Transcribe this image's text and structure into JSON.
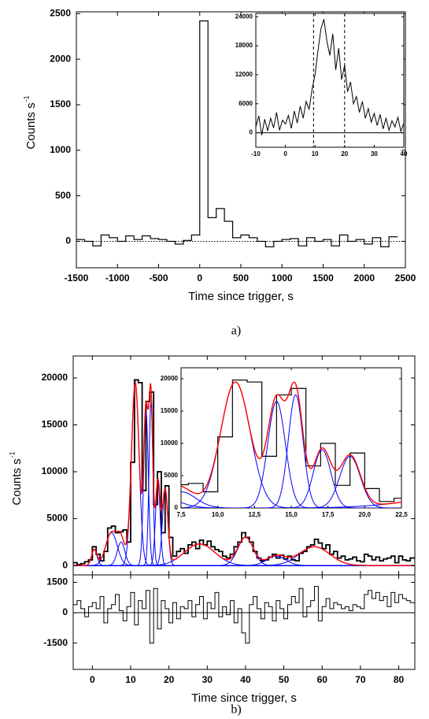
{
  "chart_data": [
    {
      "type": "histogram",
      "caption": "a)",
      "xlabel": "Time since trigger, s",
      "ylabel": "Counts s",
      "ylabel_sup": "-1",
      "bins": [
        -1500,
        -1400,
        -1300,
        -1200,
        -1100,
        -1000,
        -900,
        -800,
        -700,
        -600,
        -500,
        -400,
        -300,
        -200,
        -100,
        0,
        100,
        200,
        300,
        400,
        500,
        600,
        700,
        800,
        900,
        1000,
        1100,
        1200,
        1300,
        1400,
        1500,
        1600,
        1700,
        1800,
        1900,
        2000,
        2100,
        2200,
        2300,
        2400
      ],
      "values": [
        20,
        0,
        -50,
        70,
        40,
        0,
        60,
        20,
        60,
        30,
        20,
        0,
        -30,
        10,
        70,
        2420,
        260,
        360,
        220,
        40,
        70,
        40,
        0,
        -60,
        0,
        20,
        30,
        -50,
        40,
        0,
        20,
        -50,
        70,
        0,
        20,
        -30,
        40,
        -60,
        50
      ],
      "color": "#000000",
      "zero_line": "dotted",
      "xlim": [
        -1500,
        2500
      ],
      "xticks": [
        -1500,
        -1000,
        -500,
        0,
        500,
        1000,
        1500,
        2000,
        2500
      ],
      "ylim": [
        -290,
        2520
      ],
      "yticks": [
        0,
        500,
        1000,
        1500,
        2000,
        2500
      ]
    },
    {
      "type": "line",
      "x": [
        -10,
        -9,
        -8,
        -7,
        -6,
        -5,
        -4,
        -3,
        -2,
        -1,
        0,
        1,
        2,
        3,
        4,
        5,
        6,
        7,
        8,
        9,
        10,
        11,
        12,
        13,
        14,
        15,
        16,
        17,
        18,
        19,
        20,
        21,
        22,
        23,
        24,
        25,
        26,
        27,
        28,
        29,
        30,
        31,
        32,
        33,
        34,
        35,
        36,
        37,
        38,
        39,
        40
      ],
      "values": [
        1200,
        3500,
        -500,
        2800,
        400,
        3000,
        1000,
        4200,
        500,
        2600,
        1800,
        3600,
        900,
        4500,
        2000,
        5500,
        3000,
        6500,
        4800,
        9000,
        12000,
        17000,
        21500,
        23500,
        19000,
        16000,
        20500,
        13000,
        17500,
        11000,
        14000,
        8500,
        10500,
        6000,
        7500,
        4200,
        6500,
        3000,
        5000,
        2200,
        4000,
        1500,
        3800,
        800,
        3000,
        500,
        2500,
        1200,
        3200,
        300,
        2000
      ],
      "color": "#000000",
      "zero_line": "solid",
      "vlines": [
        9.5,
        20
      ],
      "xlim": [
        -10,
        40
      ],
      "xticks": [
        -10,
        0,
        10,
        20,
        30,
        40
      ],
      "ylim": [
        -3000,
        24700
      ],
      "yticks": [
        0,
        6000,
        12000,
        18000,
        24000
      ]
    },
    {
      "type": "histogram",
      "ylabel": "Counts s",
      "ylabel_sup": "-1",
      "bins": [
        -5,
        -4,
        -3,
        -2,
        -1,
        0,
        1,
        2,
        3,
        4,
        5,
        6,
        7,
        8,
        9,
        10,
        11,
        12,
        13,
        14,
        15,
        16,
        17,
        18,
        19,
        20,
        21,
        22,
        23,
        24,
        25,
        26,
        27,
        28,
        29,
        30,
        31,
        32,
        33,
        34,
        35,
        36,
        37,
        38,
        39,
        40,
        41,
        42,
        43,
        44,
        45,
        46,
        47,
        48,
        49,
        50,
        51,
        52,
        53,
        54,
        55,
        56,
        57,
        58,
        59,
        60,
        61,
        62,
        63,
        64,
        65,
        66,
        67,
        68,
        69,
        70,
        71,
        72,
        73,
        74,
        75,
        76,
        77,
        78,
        79,
        80,
        81,
        82,
        83,
        84
      ],
      "values": [
        300,
        100,
        200,
        400,
        600,
        2000,
        1200,
        500,
        1500,
        4000,
        4200,
        3500,
        3600,
        3800,
        2500,
        11000,
        19800,
        19500,
        8000,
        17500,
        18500,
        6500,
        10000,
        3500,
        8500,
        3000,
        1000,
        1500,
        1800,
        1300,
        2200,
        2500,
        1800,
        2700,
        2200,
        2600,
        2000,
        1700,
        1500,
        1000,
        800,
        1200,
        2000,
        2500,
        3500,
        3000,
        2500,
        1500,
        800,
        500,
        600,
        900,
        1200,
        800,
        1100,
        700,
        1000,
        600,
        500,
        1300,
        1500,
        2000,
        2200,
        2800,
        2400,
        1800,
        2200,
        1200,
        1500,
        800,
        1000,
        600,
        700,
        900,
        500,
        400,
        1200,
        1000,
        600,
        900,
        500,
        700,
        800,
        1000,
        300,
        1000,
        600,
        500,
        800
      ],
      "color": "#000000",
      "zero_line": "solid",
      "fit_color": "#ff0000",
      "component_color": "#0000ff",
      "components": [
        {
          "center": 0.5,
          "amplitude": 1700,
          "sigma": 0.7
        },
        {
          "center": 5,
          "amplitude": 3500,
          "sigma": 1.5
        },
        {
          "center": 7.5,
          "amplitude": 2500,
          "sigma": 1.0
        },
        {
          "center": 11.2,
          "amplitude": 19500,
          "sigma": 1.0
        },
        {
          "center": 14,
          "amplitude": 16500,
          "sigma": 0.6
        },
        {
          "center": 15.3,
          "amplitude": 17500,
          "sigma": 0.5
        },
        {
          "center": 17.1,
          "amplitude": 9000,
          "sigma": 0.6
        },
        {
          "center": 19,
          "amplitude": 8000,
          "sigma": 0.7
        },
        {
          "center": 28,
          "amplitude": 2300,
          "sigma": 4
        },
        {
          "center": 40,
          "amplitude": 3000,
          "sigma": 2
        },
        {
          "center": 48,
          "amplitude": 1000,
          "sigma": 2.5
        },
        {
          "center": 58,
          "amplitude": 2000,
          "sigma": 4
        }
      ],
      "xlim": [
        -5,
        84.2
      ],
      "xticks": [
        0,
        10,
        20,
        30,
        40,
        50,
        60,
        70,
        80
      ],
      "ylim": [
        -1000,
        22350
      ],
      "yticks": [
        0,
        5000,
        10000,
        15000,
        20000
      ],
      "inset": {
        "xlim": [
          7.5,
          22.5
        ],
        "xticks": [
          {
            "value": 7.5,
            "label": "7,5"
          },
          {
            "value": 10,
            "label": "10,0"
          },
          {
            "value": 12.5,
            "label": "12,5"
          },
          {
            "value": 15,
            "label": "15,0"
          },
          {
            "value": 17.5,
            "label": "17,5"
          },
          {
            "value": 20,
            "label": "20,0"
          },
          {
            "value": 22.5,
            "label": "22,5"
          }
        ],
        "ylim": [
          0,
          21700
        ],
        "yticks": [
          0,
          5000,
          10000,
          15000,
          20000
        ]
      }
    },
    {
      "type": "histogram",
      "caption": "b)",
      "xlabel": "Time since trigger, s",
      "bins": [
        -5,
        -4,
        -3,
        -2,
        -1,
        0,
        1,
        2,
        3,
        4,
        5,
        6,
        7,
        8,
        9,
        10,
        11,
        12,
        13,
        14,
        15,
        16,
        17,
        18,
        19,
        20,
        21,
        22,
        23,
        24,
        25,
        26,
        27,
        28,
        29,
        30,
        31,
        32,
        33,
        34,
        35,
        36,
        37,
        38,
        39,
        40,
        41,
        42,
        43,
        44,
        45,
        46,
        47,
        48,
        49,
        50,
        51,
        52,
        53,
        54,
        55,
        56,
        57,
        58,
        59,
        60,
        61,
        62,
        63,
        64,
        65,
        66,
        67,
        68,
        69,
        70,
        71,
        72,
        73,
        74,
        75,
        76,
        77,
        78,
        79,
        80,
        81,
        82,
        83,
        84
      ],
      "values": [
        400,
        600,
        200,
        -200,
        300,
        500,
        200,
        800,
        -500,
        200,
        400,
        900,
        100,
        -400,
        300,
        1000,
        -600,
        600,
        200,
        1100,
        -1500,
        1200,
        -800,
        600,
        200,
        -500,
        500,
        -300,
        300,
        200,
        600,
        -200,
        400,
        800,
        -300,
        500,
        200,
        1000,
        -200,
        300,
        -100,
        600,
        -500,
        200,
        -1000,
        -1500,
        400,
        800,
        200,
        -300,
        500,
        300,
        -400,
        600,
        200,
        -300,
        400,
        800,
        500,
        1200,
        -200,
        300,
        600,
        1300,
        -400,
        300,
        700,
        200,
        500,
        400,
        200,
        300,
        100,
        400,
        300,
        200,
        900,
        1100,
        700,
        1000,
        600,
        800,
        300,
        1000,
        500,
        900,
        700,
        600,
        500
      ],
      "color": "#000000",
      "zero_line": "solid",
      "xlim": [
        -5,
        84.2
      ],
      "xticks": [
        0,
        10,
        20,
        30,
        40,
        50,
        60,
        70,
        80
      ],
      "ylim": [
        -2800,
        1870
      ],
      "yticks": [
        -1500,
        0,
        1500
      ]
    }
  ]
}
